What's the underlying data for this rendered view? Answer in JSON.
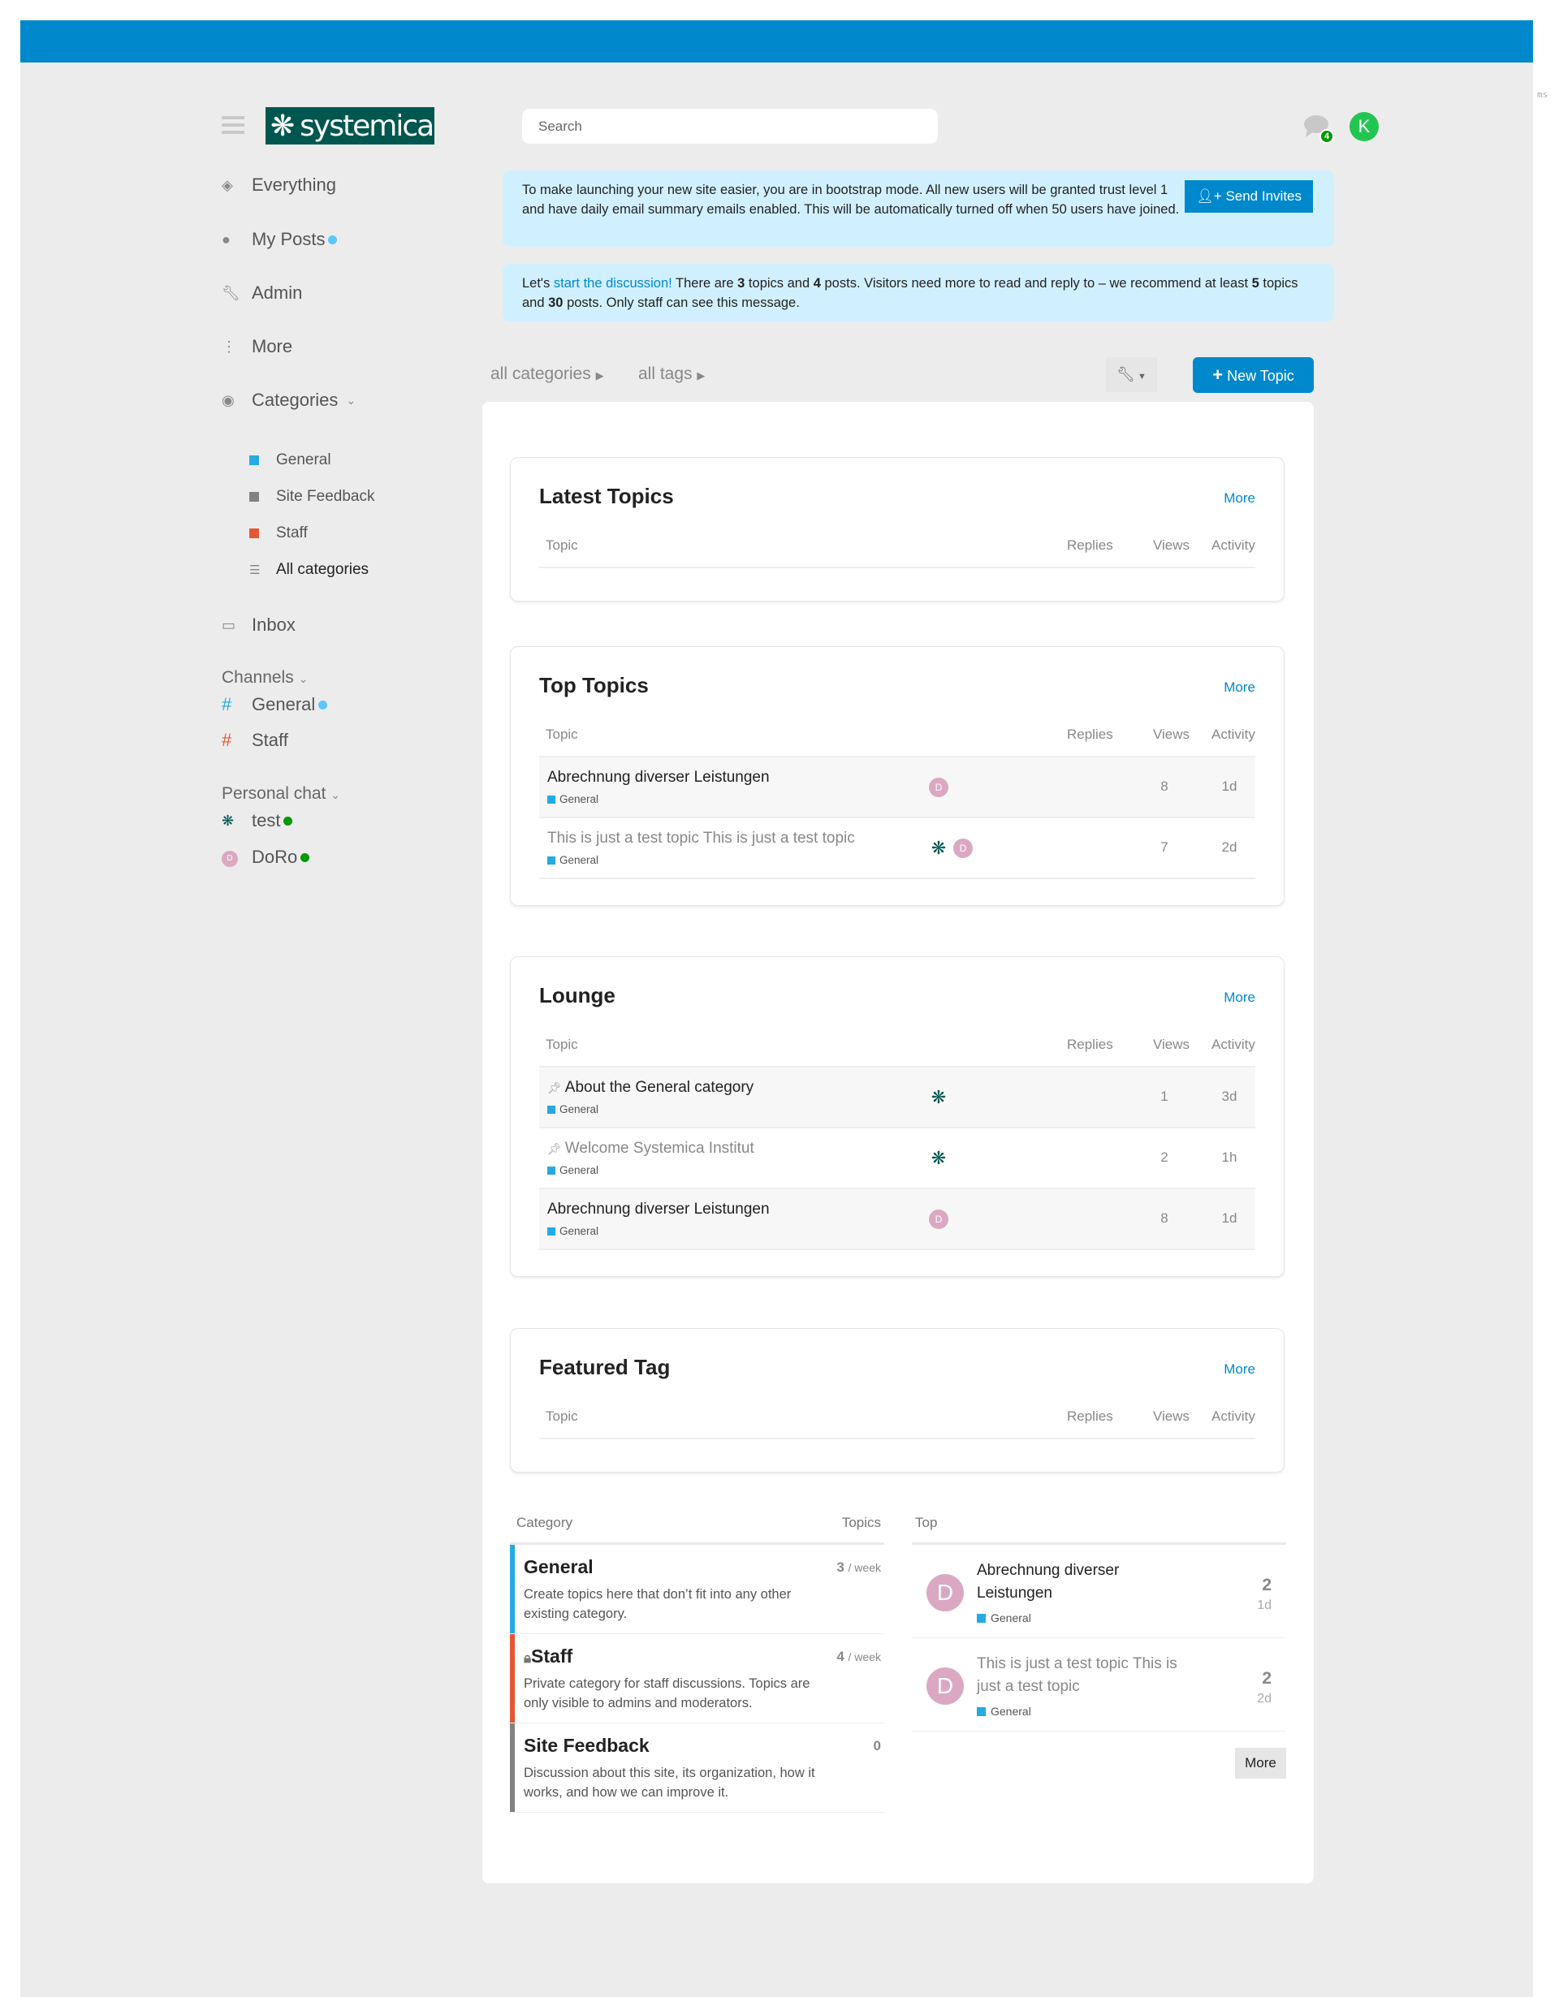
{
  "colors": {
    "brand": "#0088cc",
    "general": "#25aae1",
    "site_feedback": "#808281",
    "staff": "#e45735",
    "logo_bg": "#00574f",
    "online": "#009900",
    "unread": "#5ac8fa"
  },
  "header": {
    "logo_text": "systemica",
    "search_placeholder": "Search",
    "chat_badge": "4",
    "avatar_letter": "K",
    "edge_text": "ms"
  },
  "sidebar": {
    "items": [
      {
        "label": "Everything",
        "icon": "layers-icon"
      },
      {
        "label": "My Posts",
        "icon": "user-icon"
      },
      {
        "label": "Admin",
        "icon": "wrench-icon"
      },
      {
        "label": "More",
        "icon": "more-vertical-icon"
      },
      {
        "label": "Categories",
        "icon": "compass-icon"
      }
    ],
    "categories": [
      {
        "label": "General"
      },
      {
        "label": "Site Feedback"
      },
      {
        "label": "Staff"
      },
      {
        "label": "All categories"
      }
    ],
    "inbox": "Inbox",
    "channels_title": "Channels",
    "channels": [
      {
        "label": "General"
      },
      {
        "label": "Staff"
      }
    ],
    "personal_title": "Personal chat",
    "personal": [
      {
        "label": "test"
      },
      {
        "label": "DoRo",
        "avatar": "D"
      }
    ]
  },
  "banners": {
    "bootstrap": "To make launching your new site easier, you are in bootstrap mode. All new users will be granted trust level 1 and have daily email summary emails enabled. This will be automatically turned off when 50 users have joined.",
    "send_invites": "Send Invites",
    "discussion": {
      "p1": "Let's ",
      "link": "start the discussion!",
      "p2": " There are ",
      "topics": "3",
      "p3": " topics and ",
      "posts": "4",
      "p4": " posts. Visitors need more to read and reply to – we recommend at least ",
      "rec_topics": "5",
      "p5": " topics and ",
      "rec_posts": "30",
      "p6": " posts. Only staff can see this message."
    }
  },
  "nav": {
    "all_categories": "all categories",
    "all_tags": "all tags",
    "new_topic": "New Topic"
  },
  "columns": {
    "topic": "Topic",
    "replies": "Replies",
    "views": "Views",
    "activity": "Activity"
  },
  "cards": [
    {
      "title": "Latest Topics",
      "more": "More",
      "rows": []
    },
    {
      "title": "Top Topics",
      "more": "More",
      "rows": [
        {
          "title": "Abrechnung diverser Leistungen",
          "category": "General",
          "posters": [
            "D"
          ],
          "views": "8",
          "activity": "1d",
          "visited": false,
          "highlight": true
        },
        {
          "title": "This is just a test topic This is just a test topic",
          "category": "General",
          "posters": [
            "logo",
            "D"
          ],
          "views": "7",
          "activity": "2d",
          "visited": true,
          "highlight": false
        }
      ]
    },
    {
      "title": "Lounge",
      "more": "More",
      "rows": [
        {
          "title": "About the General category",
          "category": "General",
          "posters": [
            "logo"
          ],
          "views": "1",
          "activity": "3d",
          "visited": false,
          "highlight": true,
          "status": "pin-icon"
        },
        {
          "title": "Welcome Systemica Institut",
          "category": "General",
          "posters": [
            "logo"
          ],
          "views": "2",
          "activity": "1h",
          "visited": true,
          "highlight": false,
          "status": "pin-icon"
        },
        {
          "title": "Abrechnung diverser Leistungen",
          "category": "General",
          "posters": [
            "D"
          ],
          "views": "8",
          "activity": "1d",
          "visited": false,
          "highlight": true
        }
      ]
    },
    {
      "title": "Featured Tag",
      "more": "More",
      "rows": []
    }
  ],
  "categories_table": {
    "header_category": "Category",
    "header_topics": "Topics",
    "rows": [
      {
        "name": "General",
        "description": "Create topics here that don’t fit into any other existing category.",
        "count": "3",
        "unit": "/ week",
        "color": "#25aae1"
      },
      {
        "name": "Staff",
        "description": "Private category for staff discussions. Topics are only visible to admins and moderators.",
        "count": "4",
        "unit": "/ week",
        "color": "#e45735",
        "locked": true
      },
      {
        "name": "Site Feedback",
        "description": "Discussion about this site, its organization, how it works, and how we can improve it.",
        "count": "0",
        "unit": "",
        "color": "#808281"
      }
    ]
  },
  "top_table": {
    "header": "Top",
    "more": "More",
    "rows": [
      {
        "avatar": "D",
        "title": "Abrechnung diverser Leistungen",
        "category": "General",
        "replies": "2",
        "age": "1d",
        "visited": false
      },
      {
        "avatar": "D",
        "title": "This is just a test topic This is just a test topic",
        "category": "General",
        "replies": "2",
        "age": "2d",
        "visited": true
      }
    ]
  }
}
